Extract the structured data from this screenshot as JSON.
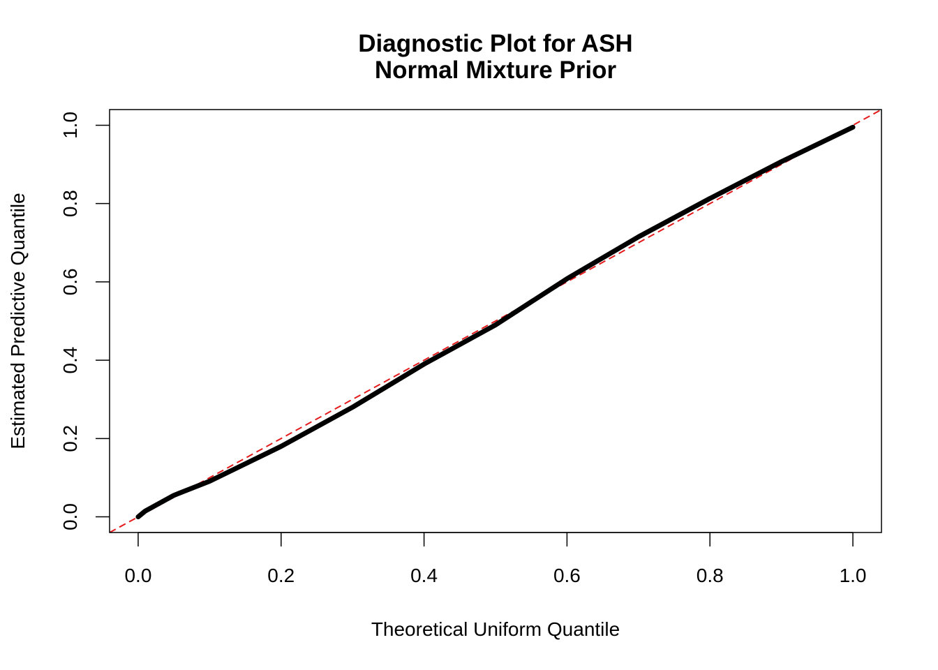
{
  "chart_data": {
    "type": "line",
    "title": "Diagnostic Plot for ASH",
    "subtitle": "Normal Mixture Prior",
    "x_label": "Theoretical Uniform Quantile",
    "y_label": "Estimated Predictive Quantile",
    "x": [
      0,
      0.01,
      0.05,
      0.1,
      0.2,
      0.3,
      0.4,
      0.5,
      0.6,
      0.7,
      0.8,
      0.9,
      1.0
    ],
    "series": [
      {
        "color": "#000000",
        "values": [
          0,
          0.015,
          0.055,
          0.091,
          0.18,
          0.28,
          0.39,
          0.49,
          0.608,
          0.715,
          0.813,
          0.907,
          0.995
        ]
      }
    ],
    "reference_line": {
      "slope": 1,
      "intercept": 0,
      "color": "#e41a1c",
      "dashed": true
    },
    "xlim": [
      -0.04,
      1.04
    ],
    "ylim": [
      -0.04,
      1.04
    ],
    "xticks": [
      {
        "value": 0,
        "label": "0.0"
      },
      0.2,
      0.4,
      0.6,
      0.8,
      {
        "value": 1,
        "label": "1.0"
      }
    ],
    "yticks": [
      {
        "value": 0,
        "label": "0.0"
      },
      0.2,
      0.4,
      0.6,
      0.8,
      {
        "value": 1,
        "label": "1.0"
      }
    ]
  }
}
